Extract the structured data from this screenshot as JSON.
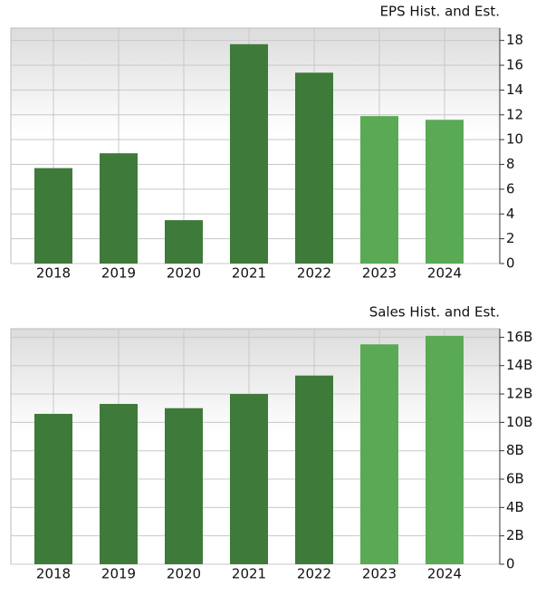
{
  "chart_data": [
    {
      "type": "bar",
      "title": "EPS Hist. and Est.",
      "categories": [
        "2018",
        "2019",
        "2020",
        "2021",
        "2022",
        "2023",
        "2024"
      ],
      "values": [
        7.7,
        8.9,
        3.5,
        17.7,
        15.4,
        11.9,
        11.6
      ],
      "colors": [
        "#3e7a3a",
        "#3e7a3a",
        "#3e7a3a",
        "#3e7a3a",
        "#3e7a3a",
        "#5aa955",
        "#5aa955"
      ],
      "ylim": [
        0,
        19
      ],
      "yticks": [
        0,
        2,
        4,
        6,
        8,
        10,
        12,
        14,
        16,
        18
      ],
      "grid": true
    },
    {
      "type": "bar",
      "title": "Sales Hist. and Est.",
      "categories": [
        "2018",
        "2019",
        "2020",
        "2021",
        "2022",
        "2023",
        "2024"
      ],
      "values": [
        10600000000,
        11300000000,
        11000000000,
        12000000000,
        13300000000,
        15500000000,
        16100000000
      ],
      "colors": [
        "#3e7a3a",
        "#3e7a3a",
        "#3e7a3a",
        "#3e7a3a",
        "#3e7a3a",
        "#5aa955",
        "#5aa955"
      ],
      "ylim": [
        0,
        16600000000
      ],
      "yticks": [
        0,
        {
          "value": 2000000000,
          "label": "2B"
        },
        {
          "value": 4000000000,
          "label": "4B"
        },
        {
          "value": 6000000000,
          "label": "6B"
        },
        {
          "value": 8000000000,
          "label": "8B"
        },
        {
          "value": 10000000000,
          "label": "10B"
        },
        {
          "value": 12000000000,
          "label": "12B"
        },
        {
          "value": 14000000000,
          "label": "14B"
        },
        {
          "value": 16000000000,
          "label": "16B"
        }
      ],
      "grid": true
    }
  ]
}
